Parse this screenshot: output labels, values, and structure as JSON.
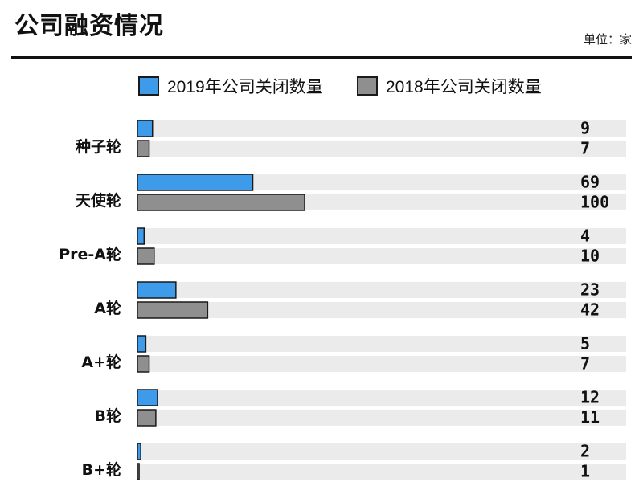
{
  "title": "公司融资情况",
  "unit_note": "单位：家",
  "colors": {
    "series_2019": "#3d9be9",
    "series_2018": "#8f8f8f",
    "track": "#ebebeb",
    "outline": "#1a1a1a"
  },
  "chart_data": {
    "type": "bar",
    "orientation": "horizontal",
    "title": "公司融资情况",
    "unit": "单位：家",
    "categories": [
      "种子轮",
      "天使轮",
      "Pre-A轮",
      "A轮",
      "A+轮",
      "B轮",
      "B+轮"
    ],
    "series": [
      {
        "name": "2019年公司关闭数量",
        "color": "#3d9be9",
        "values": [
          9,
          69,
          4,
          23,
          5,
          12,
          2
        ]
      },
      {
        "name": "2018年公司关闭数量",
        "color": "#8f8f8f",
        "values": [
          7,
          100,
          10,
          42,
          7,
          11,
          1
        ]
      }
    ],
    "xlim": [
      0,
      100
    ],
    "legend_position": "top",
    "grid": false,
    "data_labels": true
  }
}
